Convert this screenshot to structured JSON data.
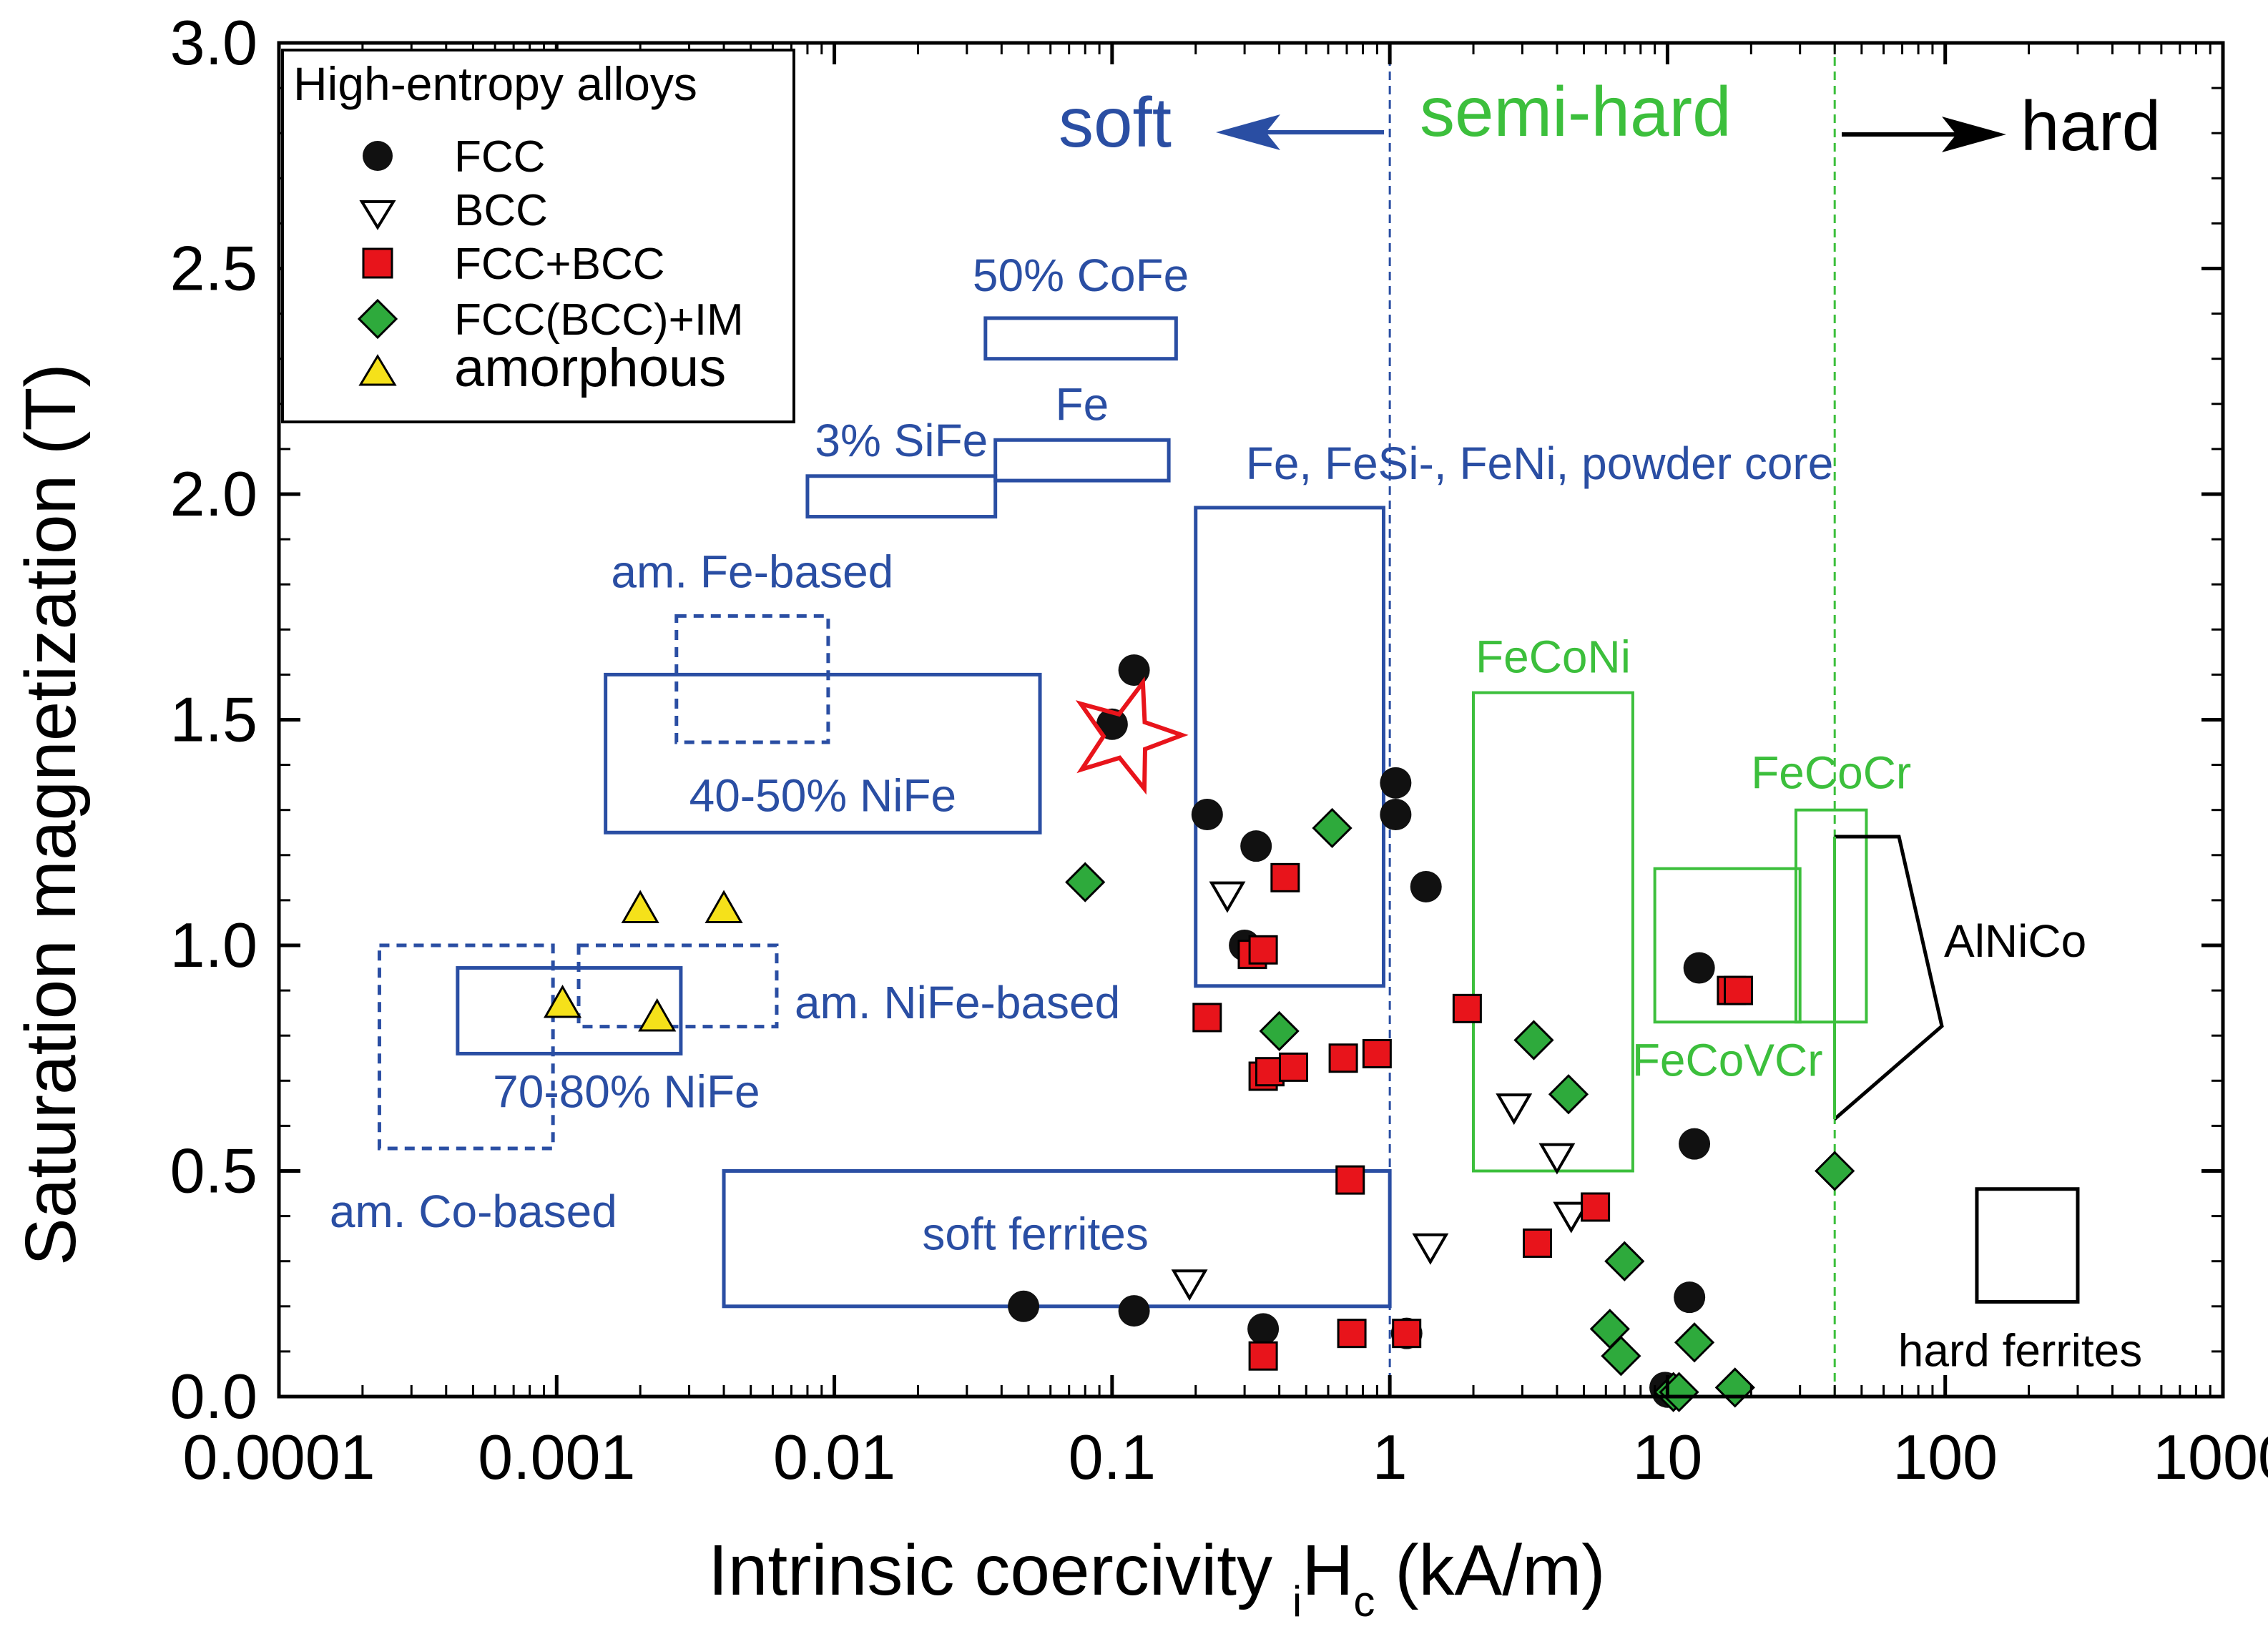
{
  "chart_data": {
    "type": "scatter",
    "xscale": "log",
    "xlim": [
      0.0001,
      1000
    ],
    "ylim": [
      0.0,
      3.0
    ],
    "xlabel_main": "Intrinsic coercivity ",
    "xlabel_sub": "i",
    "xlabel_main2": "H",
    "xlabel_sub2": "c",
    "xlabel_units": " (kA/m)",
    "ylabel": "Saturation magnetization (T)",
    "xticks": [
      0.0001,
      0.001,
      0.01,
      0.1,
      1,
      10,
      100,
      1000
    ],
    "xtick_labels": [
      "0.0001",
      "0.001",
      "0.01",
      "0.1",
      "1",
      "10",
      "100",
      "1000"
    ],
    "yticks": [
      0.0,
      0.5,
      1.0,
      1.5,
      2.0,
      2.5,
      3.0
    ],
    "ytick_labels": [
      "0.0",
      "0.5",
      "1.0",
      "1.5",
      "2.0",
      "2.5",
      "3.0"
    ],
    "legend": {
      "title": "High-entropy alloys",
      "position": "top-left",
      "entries": [
        {
          "label": "FCC",
          "marker": "circle"
        },
        {
          "label": "BCC",
          "marker": "triangle-down"
        },
        {
          "label": "FCC+BCC",
          "marker": "square"
        },
        {
          "label": "FCC(BCC)+IM",
          "marker": "diamond"
        },
        {
          "label": "amorphous",
          "marker": "triangle-up"
        }
      ]
    },
    "series": [
      {
        "name": "FCC",
        "marker": "circle",
        "color": "#111111",
        "points": [
          [
            0.12,
            1.61
          ],
          [
            0.1,
            1.49
          ],
          [
            0.22,
            1.29
          ],
          [
            0.33,
            1.22
          ],
          [
            0.3,
            1.0
          ],
          [
            1.05,
            1.36
          ],
          [
            1.05,
            1.29
          ],
          [
            1.35,
            1.13
          ],
          [
            0.048,
            0.2
          ],
          [
            0.12,
            0.19
          ],
          [
            0.35,
            0.15
          ],
          [
            1.15,
            0.14
          ],
          [
            13,
            0.95
          ],
          [
            12.5,
            0.56
          ],
          [
            12,
            0.22
          ],
          [
            10,
            0.01
          ],
          [
            9.8,
            0.02
          ]
        ]
      },
      {
        "name": "BCC",
        "marker": "triangle-down",
        "color": "#ffffff",
        "points": [
          [
            0.26,
            1.11
          ],
          [
            2.8,
            0.64
          ],
          [
            4,
            0.53
          ],
          [
            4.5,
            0.4
          ],
          [
            1.4,
            0.33
          ],
          [
            0.19,
            0.25
          ]
        ]
      },
      {
        "name": "FCC+BCC",
        "marker": "square",
        "color": "#e8141b",
        "points": [
          [
            0.42,
            1.15
          ],
          [
            0.32,
            0.98
          ],
          [
            0.35,
            0.99
          ],
          [
            0.22,
            0.84
          ],
          [
            0.35,
            0.71
          ],
          [
            0.37,
            0.72
          ],
          [
            0.45,
            0.73
          ],
          [
            0.68,
            0.75
          ],
          [
            0.9,
            0.76
          ],
          [
            1.9,
            0.86
          ],
          [
            0.72,
            0.48
          ],
          [
            0.73,
            0.14
          ],
          [
            1.15,
            0.14
          ],
          [
            0.35,
            0.09
          ],
          [
            5.5,
            0.42
          ],
          [
            3.4,
            0.34
          ],
          [
            17,
            0.9
          ],
          [
            18,
            0.9
          ]
        ]
      },
      {
        "name": "FCC(BCC)+IM",
        "marker": "diamond",
        "color": "#2eaa3c",
        "points": [
          [
            0.08,
            1.14
          ],
          [
            0.62,
            1.26
          ],
          [
            0.4,
            0.81
          ],
          [
            3.3,
            0.79
          ],
          [
            4.4,
            0.67
          ],
          [
            7,
            0.3
          ],
          [
            6.2,
            0.15
          ],
          [
            6.8,
            0.09
          ],
          [
            12.5,
            0.12
          ],
          [
            10.5,
            0.01
          ],
          [
            11,
            0.01
          ],
          [
            17.5,
            0.02
          ],
          [
            40,
            0.5
          ]
        ]
      },
      {
        "name": "amorphous",
        "marker": "triangle-up",
        "color": "#f5e11a",
        "points": [
          [
            0.002,
            1.08
          ],
          [
            0.004,
            1.08
          ],
          [
            0.00105,
            0.87
          ],
          [
            0.0023,
            0.84
          ]
        ]
      }
    ],
    "regions": [
      {
        "label": "50% CoFe",
        "style": "solid",
        "color": "blue",
        "x": [
          0.035,
          0.17
        ],
        "y": [
          2.3,
          2.39
        ]
      },
      {
        "label": "Fe",
        "style": "solid",
        "color": "blue",
        "x": [
          0.038,
          0.16
        ],
        "y": [
          2.03,
          2.12
        ]
      },
      {
        "label": "3% SiFe",
        "style": "solid",
        "color": "blue",
        "x": [
          0.008,
          0.038
        ],
        "y": [
          1.95,
          2.04
        ]
      },
      {
        "label": "Fe, FeSi-, FeNi, powder core",
        "style": "solid",
        "color": "blue",
        "x": [
          0.2,
          0.95
        ],
        "y": [
          0.91,
          1.97
        ]
      },
      {
        "label": "am. Fe-based",
        "style": "dashed",
        "color": "blue",
        "x": [
          0.0027,
          0.0095
        ],
        "y": [
          1.45,
          1.73
        ]
      },
      {
        "label": "40-50% NiFe",
        "style": "solid",
        "color": "blue",
        "x": [
          0.0015,
          0.055
        ],
        "y": [
          1.25,
          1.6
        ]
      },
      {
        "label": "am. NiFe-based",
        "style": "dashed",
        "color": "blue",
        "x": [
          0.0012,
          0.0062
        ],
        "y": [
          0.82,
          1.0
        ]
      },
      {
        "label": "70-80% NiFe",
        "style": "solid",
        "color": "blue",
        "x": [
          0.00044,
          0.0028
        ],
        "y": [
          0.76,
          0.95
        ]
      },
      {
        "label": "am. Co-based",
        "style": "dashed",
        "color": "blue",
        "x": [
          0.00023,
          0.00097
        ],
        "y": [
          0.55,
          1.0
        ]
      },
      {
        "label": "soft ferrites",
        "style": "solid",
        "color": "blue",
        "x": [
          0.004,
          1.0
        ],
        "y": [
          0.2,
          0.5
        ]
      },
      {
        "label": "FeCoNi",
        "style": "solid",
        "color": "green",
        "x": [
          2.0,
          7.5
        ],
        "y": [
          0.5,
          1.56
        ]
      },
      {
        "label": "FeCoVCr",
        "style": "solid",
        "color": "green",
        "x": [
          9.0,
          30.0
        ],
        "y": [
          0.83,
          1.17
        ]
      },
      {
        "label": "FeCoCr",
        "style": "solid",
        "color": "green",
        "x": [
          29.0,
          52.0
        ],
        "y": [
          0.83,
          1.3
        ]
      },
      {
        "label": "hard ferrites",
        "style": "solid",
        "color": "black",
        "x": [
          130,
          300
        ],
        "y": [
          0.21,
          0.46
        ]
      }
    ],
    "alnico_label": "AlNiCo",
    "boundaries": [
      {
        "x": 1.0,
        "color": "blue",
        "style": "dashed"
      },
      {
        "x": 40.0,
        "color": "green",
        "style": "dashed"
      }
    ],
    "zone_labels": {
      "soft": "soft",
      "semi_hard": "semi-hard",
      "hard": "hard"
    },
    "star_marker": {
      "x": 0.1,
      "y": 1.48,
      "color": "#e8141b"
    }
  }
}
